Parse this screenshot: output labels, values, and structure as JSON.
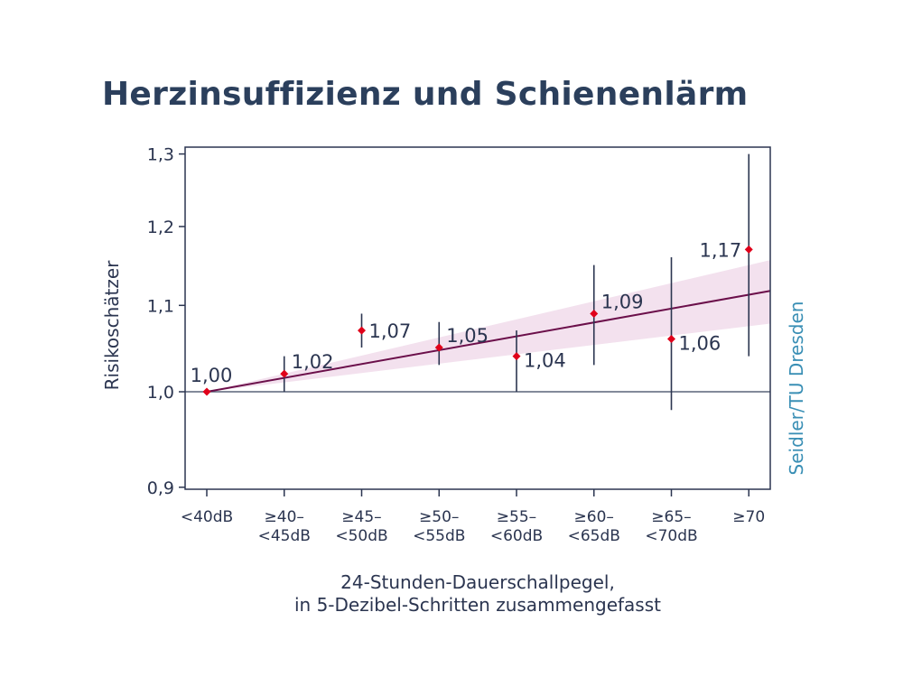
{
  "chart_data": {
    "type": "scatter",
    "title": "Herzinsuffizienz und Schienenlärm",
    "ylabel": "Risikoschätzer",
    "xlabel_lines": [
      "24-Stunden-Dauerschallpegel,",
      "in 5-Dezibel-Schritten zusammengefasst"
    ],
    "credit": "Seidler/TU Dresden",
    "yscale": "log",
    "ylim": [
      0.9,
      1.3
    ],
    "yticks": [
      0.9,
      1.0,
      1.1,
      1.2,
      1.3
    ],
    "ytick_labels": [
      "0,9",
      "1,0",
      "1,1",
      "1,2",
      "1,3"
    ],
    "reference_line": 1.0,
    "categories": [
      [
        "<40dB"
      ],
      [
        "≥40–",
        "<45dB"
      ],
      [
        "≥45–",
        "<50dB"
      ],
      [
        "≥50–",
        "<55dB"
      ],
      [
        "≥55–",
        "<60dB"
      ],
      [
        "≥60–",
        "<65dB"
      ],
      [
        "≥65–",
        "<70dB"
      ],
      [
        "≥70"
      ]
    ],
    "values": [
      1.0,
      1.02,
      1.07,
      1.05,
      1.04,
      1.09,
      1.06,
      1.17
    ],
    "value_labels": [
      "1,00",
      "1,02",
      "1,07",
      "1,05",
      "1,04",
      "1,09",
      "1,06",
      "1,17"
    ],
    "ci_lower": [
      null,
      1.0,
      1.05,
      1.03,
      1.0,
      1.03,
      0.98,
      1.04
    ],
    "ci_upper": [
      null,
      1.04,
      1.09,
      1.08,
      1.07,
      1.15,
      1.16,
      1.3
    ],
    "trend": {
      "at_first": 1.0,
      "at_last": 1.113,
      "band_lower_at_last": 1.075,
      "band_upper_at_last": 1.15
    },
    "colors": {
      "axis": "#2b3550",
      "point": "#e0001a",
      "trend": "#6b0f4a",
      "band": "#f3e1ee",
      "credit": "#3a8fb5",
      "title": "#2b3f5c"
    }
  }
}
